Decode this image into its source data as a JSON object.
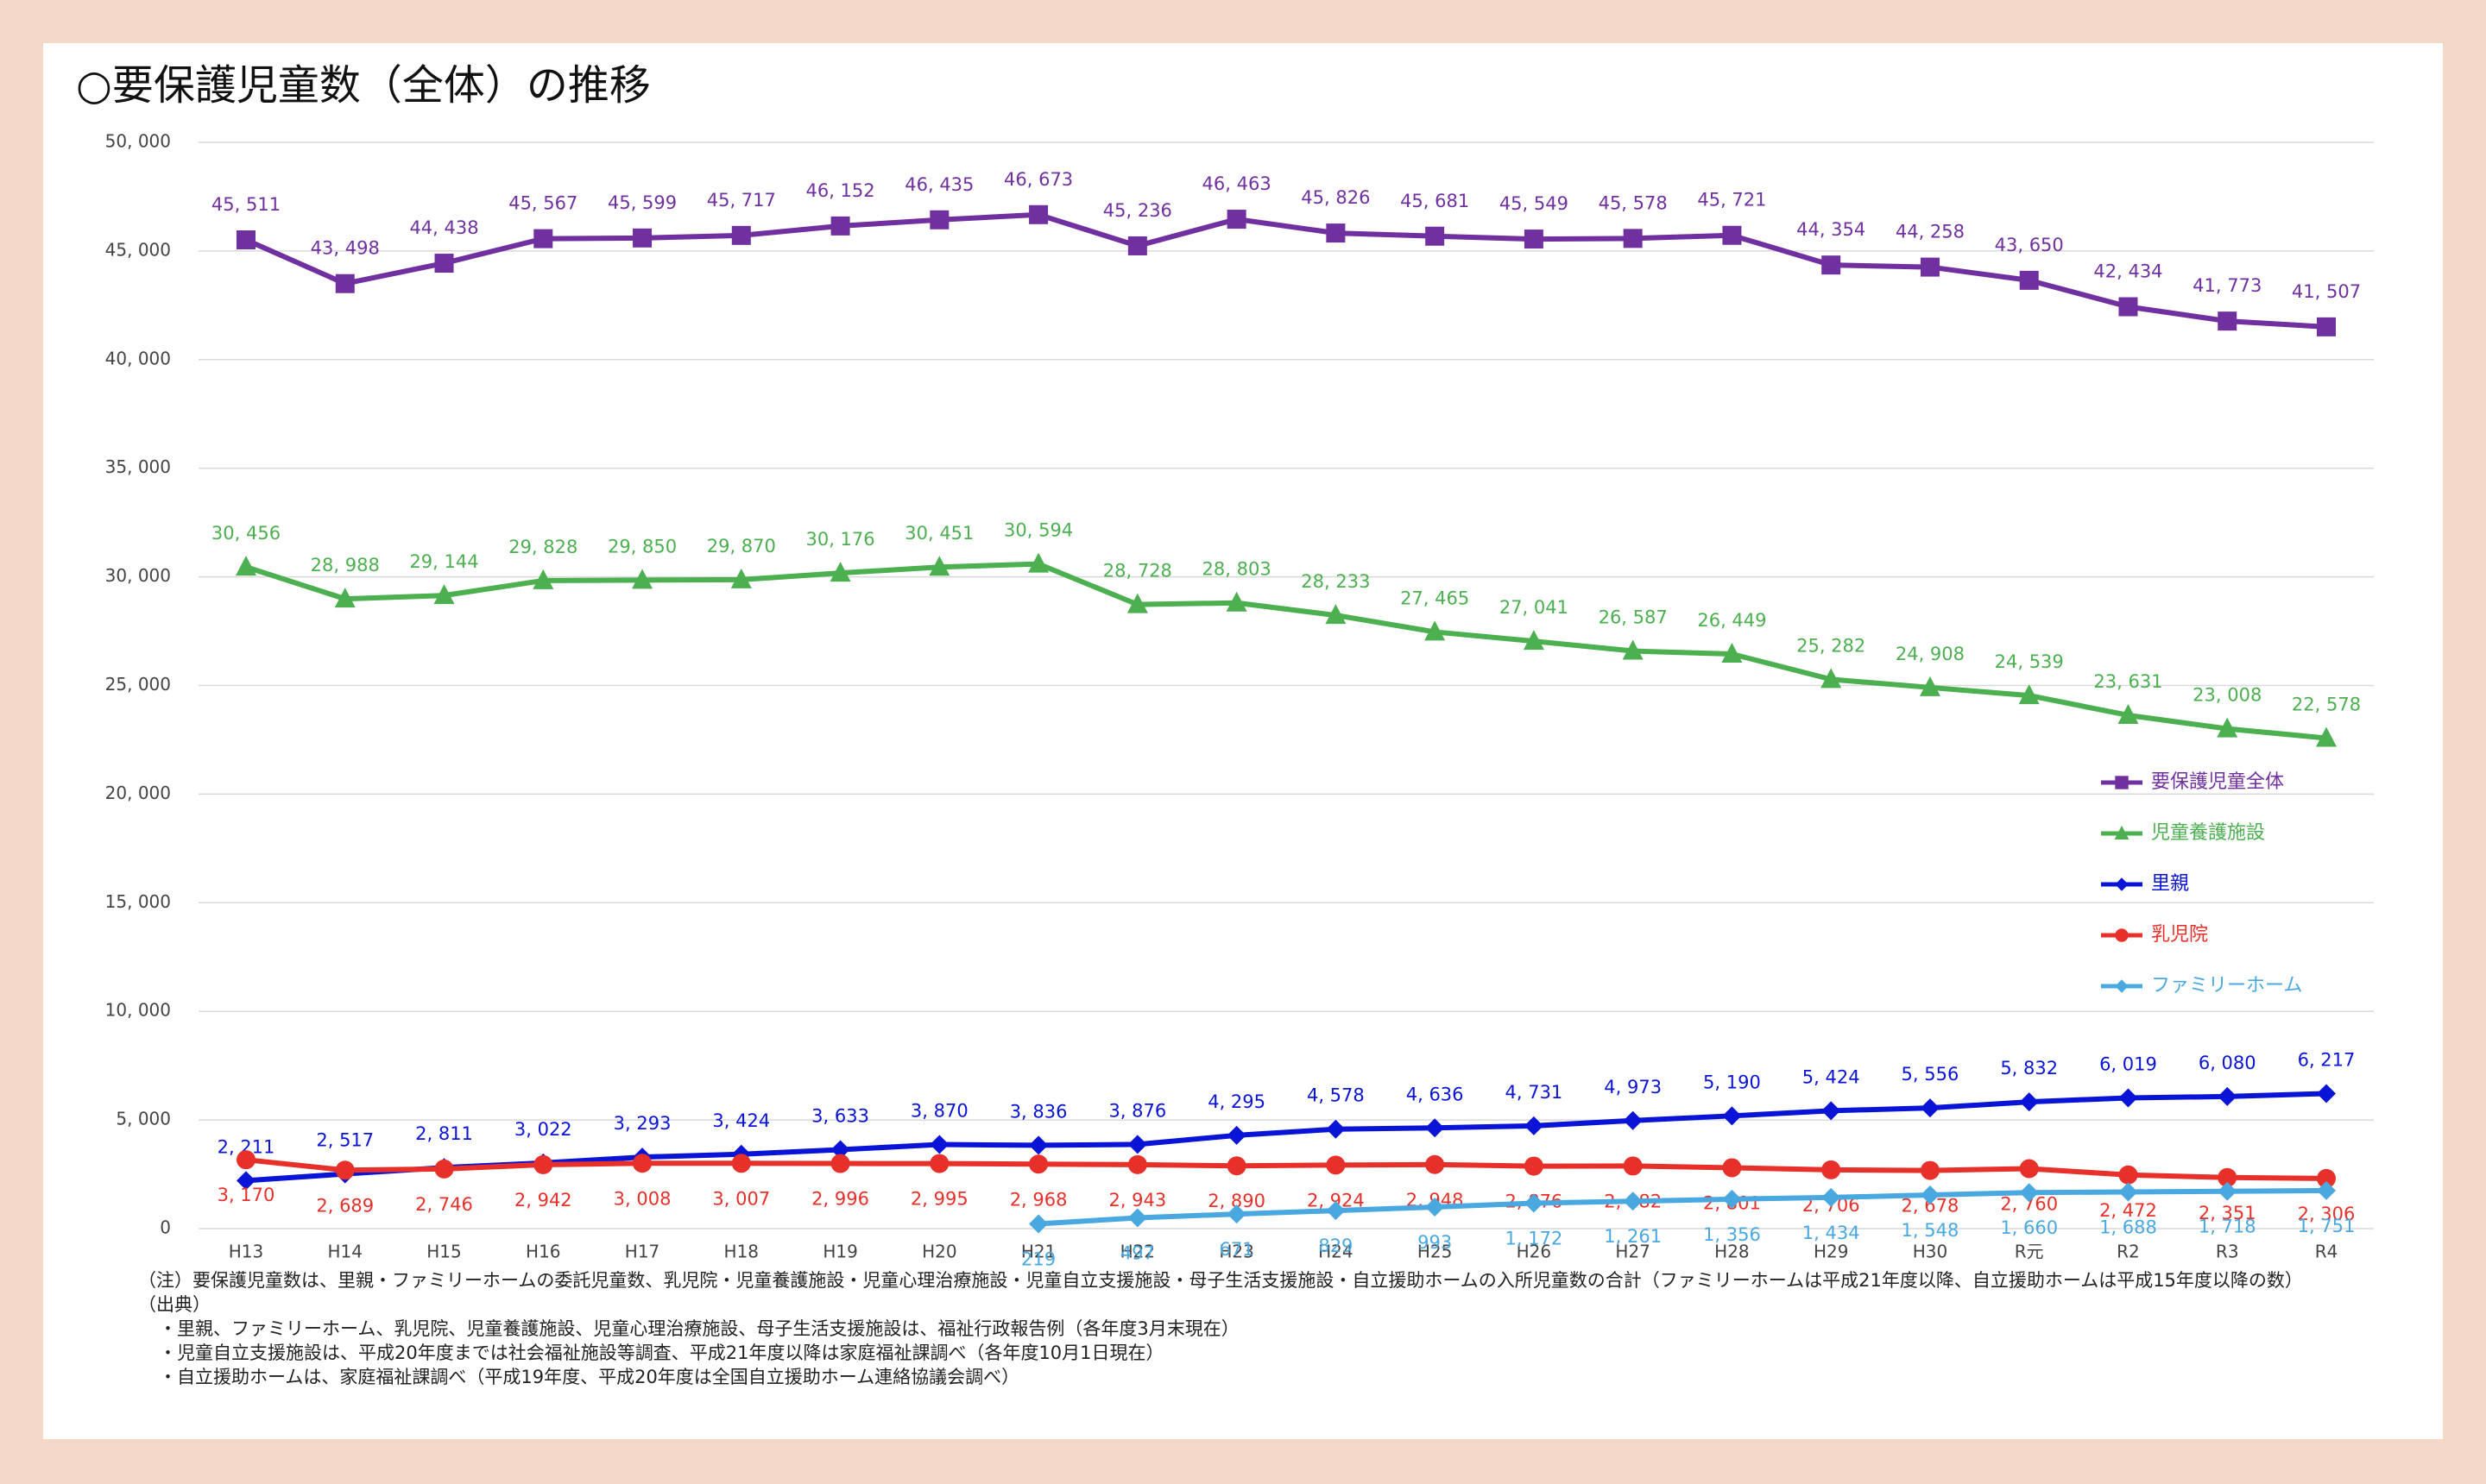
{
  "chart_data": {
    "type": "line",
    "title": "○要保護児童数（全体）の推移",
    "categories": [
      "H13",
      "H14",
      "H15",
      "H16",
      "H17",
      "H18",
      "H19",
      "H20",
      "H21",
      "H22",
      "H23",
      "H24",
      "H25",
      "H26",
      "H27",
      "H28",
      "H29",
      "H30",
      "R元",
      "R2",
      "R3",
      "R4"
    ],
    "ylim": [
      0,
      50000
    ],
    "yticks": [
      0,
      {
        "value": 5000,
        "label": "5, 000"
      },
      {
        "value": 10000,
        "label": "10, 000"
      },
      {
        "value": 15000,
        "label": "15, 000"
      },
      {
        "value": 20000,
        "label": "20, 000"
      },
      {
        "value": 25000,
        "label": "25, 000"
      },
      {
        "value": 30000,
        "label": "30, 000"
      },
      {
        "value": 35000,
        "label": "35, 000"
      },
      {
        "value": 40000,
        "label": "40, 000"
      },
      {
        "value": 45000,
        "label": "45, 000"
      },
      {
        "value": 50000,
        "label": "50, 000"
      }
    ],
    "grid": true,
    "legend": "right",
    "series": [
      {
        "name": "要保護児童全体",
        "color": "#7030a0",
        "marker": "square",
        "values": [
          45511,
          43498,
          44438,
          45567,
          45599,
          45717,
          46152,
          46435,
          46673,
          45236,
          46463,
          45826,
          45681,
          45549,
          45578,
          45721,
          44354,
          44258,
          43650,
          42434,
          41773,
          41507
        ],
        "value_labels": [
          "45, 511",
          "43, 498",
          "44, 438",
          "45, 567",
          "45, 599",
          "45, 717",
          "46, 152",
          "46, 435",
          "46, 673",
          "45, 236",
          "46, 463",
          "45, 826",
          "45, 681",
          "45, 549",
          "45, 578",
          "45, 721",
          "44, 354",
          "44, 258",
          "43, 650",
          "42, 434",
          "41, 773",
          "41, 507"
        ]
      },
      {
        "name": "児童養護施設",
        "color": "#4caf50",
        "marker": "triangle",
        "values": [
          30456,
          28988,
          29144,
          29828,
          29850,
          29870,
          30176,
          30451,
          30594,
          28728,
          28803,
          28233,
          27465,
          27041,
          26587,
          26449,
          25282,
          24908,
          24539,
          23631,
          23008,
          22578
        ],
        "value_labels": [
          "30, 456",
          "28, 988",
          "29, 144",
          "29, 828",
          "29, 850",
          "29, 870",
          "30, 176",
          "30, 451",
          "30, 594",
          "28, 728",
          "28, 803",
          "28, 233",
          "27, 465",
          "27, 041",
          "26, 587",
          "26, 449",
          "25, 282",
          "24, 908",
          "24, 539",
          "23, 631",
          "23, 008",
          "22, 578"
        ]
      },
      {
        "name": "里親",
        "color": "#0a14d6",
        "marker": "diamond",
        "values": [
          2211,
          2517,
          2811,
          3022,
          3293,
          3424,
          3633,
          3870,
          3836,
          3876,
          4295,
          4578,
          4636,
          4731,
          4973,
          5190,
          5424,
          5556,
          5832,
          6019,
          6080,
          6217
        ],
        "value_labels": [
          "2, 211",
          "2, 517",
          "2, 811",
          "3, 022",
          "3, 293",
          "3, 424",
          "3, 633",
          "3, 870",
          "3, 836",
          "3, 876",
          "4, 295",
          "4, 578",
          "4, 636",
          "4, 731",
          "4, 973",
          "5, 190",
          "5, 424",
          "5, 556",
          "5, 832",
          "6, 019",
          "6, 080",
          "6, 217"
        ]
      },
      {
        "name": "乳児院",
        "color": "#e8302a",
        "marker": "circle",
        "values": [
          3170,
          2689,
          2746,
          2942,
          3008,
          3007,
          2996,
          2995,
          2968,
          2943,
          2890,
          2924,
          2948,
          2876,
          2882,
          2801,
          2706,
          2678,
          2760,
          2472,
          2351,
          2306
        ],
        "value_labels": [
          "3, 170",
          "2, 689",
          "2, 746",
          "2, 942",
          "3, 008",
          "3, 007",
          "2, 996",
          "2, 995",
          "2, 968",
          "2, 943",
          "2, 890",
          "2, 924",
          "2, 948",
          "2, 876",
          "2, 882",
          "2, 801",
          "2, 706",
          "2, 678",
          "2, 760",
          "2, 472",
          "2, 351",
          "2, 306"
        ]
      },
      {
        "name": "ファミリーホーム",
        "color": "#4aa8e0",
        "marker": "diamond",
        "values": [
          null,
          null,
          null,
          null,
          null,
          null,
          null,
          null,
          219,
          497,
          671,
          829,
          993,
          1172,
          1261,
          1356,
          1434,
          1548,
          1660,
          1688,
          1718,
          1751
        ],
        "value_labels": [
          null,
          null,
          null,
          null,
          null,
          null,
          null,
          null,
          "219",
          "497",
          "671",
          "829",
          "993",
          "1, 172",
          "1, 261",
          "1, 356",
          "1, 434",
          "1, 548",
          "1, 660",
          "1, 688",
          "1, 718",
          "1, 751"
        ]
      }
    ]
  },
  "notes": [
    "（注）要保護児童数は、里親・ファミリーホームの委託児童数、乳児院・児童養護施設・児童心理治療施設・児童自立支援施設・母子生活支援施設・自立援助ホームの入所児童数の合計（ファミリーホームは平成21年度以降、自立援助ホームは平成15年度以降の数）",
    "（出典）",
    "・里親、ファミリーホーム、乳児院、児童養護施設、児童心理治療施設、母子生活支援施設は、福祉行政報告例（各年度3月末現在）",
    "・児童自立支援施設は、平成20年度までは社会福祉施設等調査、平成21年度以降は家庭福祉課調べ（各年度10月1日現在）",
    "・自立援助ホームは、家庭福祉課調べ（平成19年度、平成20年度は全国自立援助ホーム連絡協議会調べ）"
  ]
}
